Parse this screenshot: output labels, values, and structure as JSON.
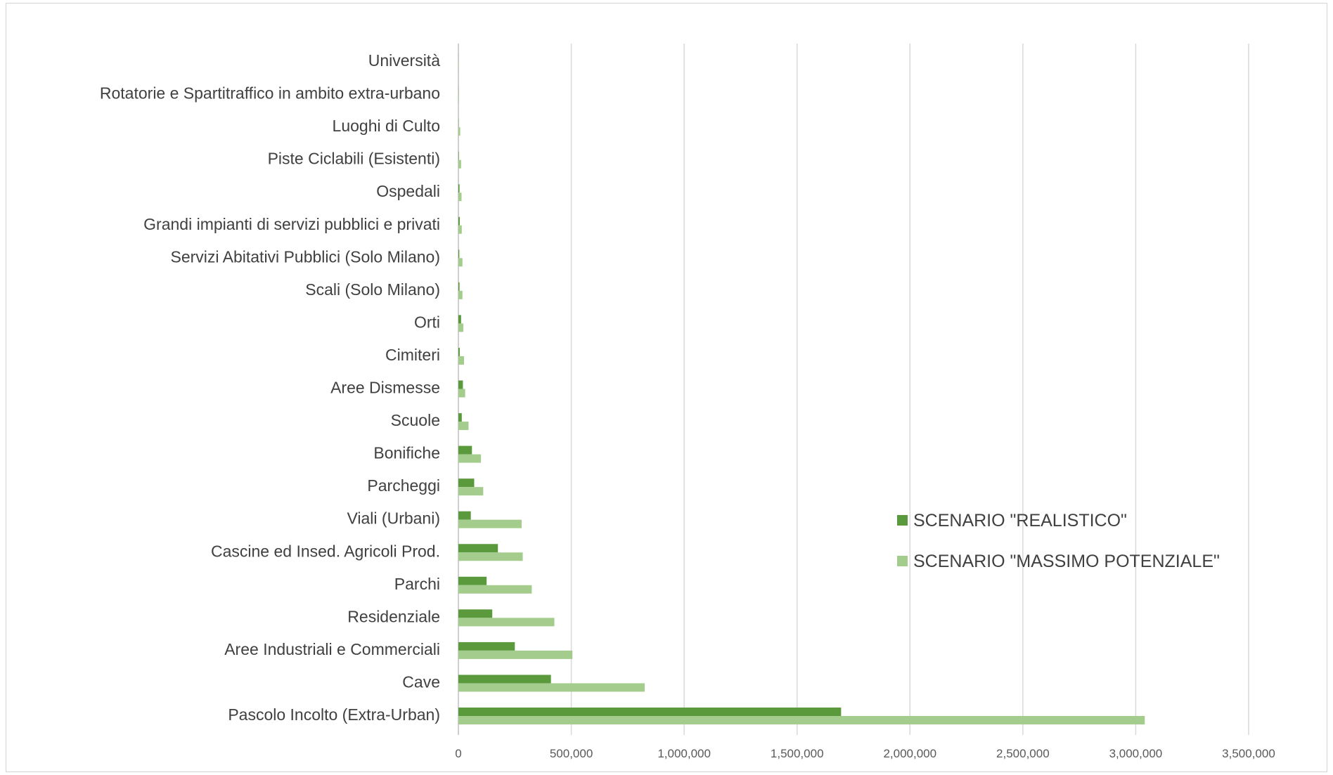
{
  "chart_data": {
    "type": "bar",
    "orientation": "horizontal",
    "title": "",
    "xlabel": "",
    "ylabel": "",
    "xlim": [
      0,
      3500000
    ],
    "xticks": [
      0,
      500000,
      1000000,
      1500000,
      2000000,
      2500000,
      3000000,
      3500000
    ],
    "xtick_labels": [
      "0",
      "500,000",
      "1,000,000",
      "1,500,000",
      "2,000,000",
      "2,500,000",
      "3,000,000",
      "3,500,000"
    ],
    "grid": "vertical",
    "legend_position": "right",
    "categories": [
      "Pascolo Incolto (Extra-Urban)",
      "Cave",
      "Aree Industriali e Commerciali",
      "Residenziale",
      "Parchi",
      "Cascine ed Insed. Agricoli Prod.",
      "Viali (Urbani)",
      "Parcheggi",
      "Bonifiche",
      "Scuole",
      "Aree Dismesse",
      "Cimiteri",
      "Orti",
      "Scali (Solo Milano)",
      "Servizi Abitativi Pubblici (Solo Milano)",
      "Grandi impianti di servizi pubblici e privati",
      "Ospedali",
      "Piste Ciclabili (Esistenti)",
      "Luoghi di Culto",
      "Rotatorie e Spartitraffico in ambito extra-urbano",
      "Università"
    ],
    "series": [
      {
        "name": "SCENARIO \"REALISTICO\"",
        "color": "#5b9a3c",
        "values": [
          1695000,
          410000,
          250000,
          150000,
          125000,
          175000,
          55000,
          70000,
          60000,
          15000,
          20000,
          6000,
          12000,
          5000,
          4000,
          6000,
          5000,
          2000,
          1000,
          500,
          300
        ]
      },
      {
        "name": "SCENARIO \"MASSIMO POTENZIALE\"",
        "color": "#a4cd8d",
        "values": [
          3040000,
          825000,
          505000,
          425000,
          325000,
          285000,
          280000,
          110000,
          100000,
          45000,
          30000,
          25000,
          22000,
          18000,
          18000,
          15000,
          14000,
          12000,
          8000,
          2000,
          1000
        ]
      }
    ]
  }
}
